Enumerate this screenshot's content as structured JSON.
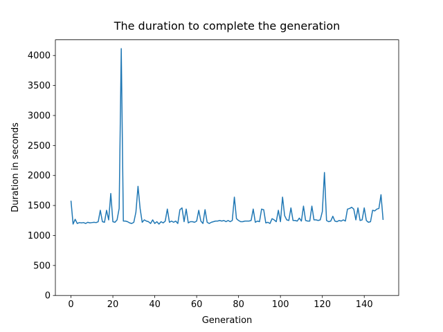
{
  "chart_data": {
    "type": "line",
    "title": "The duration to complete the generation",
    "x_label": "Generation",
    "y_label": "Duration in seconds",
    "x": [
      0,
      1,
      2,
      3,
      4,
      5,
      6,
      7,
      8,
      9,
      10,
      11,
      12,
      13,
      14,
      15,
      16,
      17,
      18,
      19,
      20,
      21,
      22,
      23,
      24,
      25,
      26,
      27,
      28,
      29,
      30,
      31,
      32,
      33,
      34,
      35,
      36,
      37,
      38,
      39,
      40,
      41,
      42,
      43,
      44,
      45,
      46,
      47,
      48,
      49,
      50,
      51,
      52,
      53,
      54,
      55,
      56,
      57,
      58,
      59,
      60,
      61,
      62,
      63,
      64,
      65,
      66,
      67,
      68,
      69,
      70,
      71,
      72,
      73,
      74,
      75,
      76,
      77,
      78,
      79,
      80,
      81,
      82,
      83,
      84,
      85,
      86,
      87,
      88,
      89,
      90,
      91,
      92,
      93,
      94,
      95,
      96,
      97,
      98,
      99,
      100,
      101,
      102,
      103,
      104,
      105,
      106,
      107,
      108,
      109,
      110,
      111,
      112,
      113,
      114,
      115,
      116,
      117,
      118,
      119,
      120,
      121,
      122,
      123,
      124,
      125,
      126,
      127,
      128,
      129,
      130,
      131,
      132,
      133,
      134,
      135,
      136,
      137,
      138,
      139,
      140,
      141,
      142,
      143,
      144,
      145,
      146,
      147,
      148,
      149
    ],
    "series": [
      {
        "color": "#1f77b4",
        "values": [
          1580,
          1190,
          1270,
          1200,
          1215,
          1210,
          1215,
          1200,
          1220,
          1210,
          1215,
          1220,
          1215,
          1230,
          1420,
          1230,
          1220,
          1420,
          1260,
          1700,
          1230,
          1220,
          1260,
          1450,
          4115,
          1240,
          1240,
          1230,
          1210,
          1200,
          1220,
          1390,
          1820,
          1450,
          1220,
          1260,
          1240,
          1230,
          1200,
          1260,
          1200,
          1230,
          1190,
          1230,
          1210,
          1240,
          1440,
          1220,
          1240,
          1220,
          1240,
          1200,
          1430,
          1460,
          1230,
          1440,
          1210,
          1230,
          1230,
          1220,
          1240,
          1420,
          1240,
          1200,
          1430,
          1220,
          1200,
          1220,
          1230,
          1240,
          1240,
          1250,
          1240,
          1250,
          1230,
          1250,
          1230,
          1250,
          1640,
          1280,
          1250,
          1230,
          1230,
          1240,
          1240,
          1240,
          1250,
          1440,
          1220,
          1240,
          1230,
          1440,
          1430,
          1210,
          1220,
          1200,
          1280,
          1260,
          1230,
          1420,
          1230,
          1640,
          1330,
          1260,
          1250,
          1460,
          1250,
          1250,
          1240,
          1290,
          1240,
          1490,
          1250,
          1240,
          1240,
          1490,
          1260,
          1260,
          1250,
          1260,
          1400,
          2050,
          1250,
          1230,
          1240,
          1320,
          1240,
          1230,
          1250,
          1240,
          1260,
          1240,
          1440,
          1450,
          1470,
          1440,
          1260,
          1460,
          1250,
          1260,
          1460,
          1250,
          1220,
          1230,
          1420,
          1410,
          1440,
          1450,
          1680,
          1260
        ]
      }
    ],
    "xlim": [
      -7.45,
      156.45
    ],
    "ylim": [
      0,
      4261
    ],
    "xticks": [
      0,
      20,
      40,
      60,
      80,
      100,
      120,
      140
    ],
    "yticks": [
      0,
      500,
      1000,
      1500,
      2000,
      2500,
      3000,
      3500,
      4000
    ]
  }
}
